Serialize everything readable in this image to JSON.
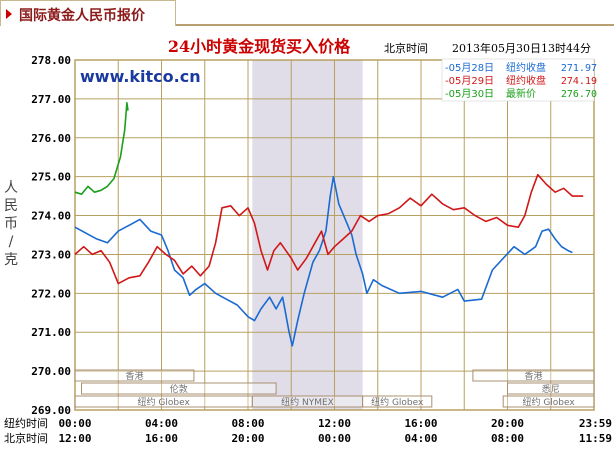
{
  "tab": {
    "title": "国际黄金人民币报价",
    "icon": "triangle-right-icon",
    "accent": "#cc0000"
  },
  "chart_data": {
    "type": "line",
    "title": "24小时黄金现货买入价格",
    "watermark": "www.kitco.cn",
    "time_label": "北京时间",
    "timestamp": "2013年05月30日13时44分",
    "ylabel": "人民币/克",
    "ylim": [
      269,
      278
    ],
    "y_ticks": [
      "278.00",
      "277.00",
      "276.00",
      "275.00",
      "274.00",
      "273.00",
      "272.00",
      "271.00",
      "270.00",
      "269.00"
    ],
    "x_rows": [
      {
        "label": "纽约时间",
        "ticks": [
          "00:00",
          "04:00",
          "08:00",
          "12:00",
          "16:00",
          "20:00",
          "23:59"
        ]
      },
      {
        "label": "北京时间",
        "ticks": [
          "12:00",
          "16:00",
          "20:00",
          "00:00",
          "04:00",
          "08:00",
          "11:59"
        ]
      }
    ],
    "grid": true,
    "colors": {
      "frame": "#b8a060",
      "grid": "#b8a060",
      "shade": "#e0dde8",
      "text": "#000000",
      "title": "#cc0000",
      "watermark": "#1a3aa0"
    },
    "shaded_region_ny_hours": [
      8.2,
      13.3
    ],
    "legend": [
      {
        "date": "05月28日",
        "desc": "纽约收盘",
        "value": "271.97",
        "color": "#1a6ad2"
      },
      {
        "date": "05月29日",
        "desc": "纽约收盘",
        "value": "274.19",
        "color": "#d01818"
      },
      {
        "date": "05月30日",
        "desc": "最新价",
        "value": "276.70",
        "color": "#1aa01a"
      }
    ],
    "market_labels": [
      {
        "text": "香港",
        "row": 0,
        "start": 0,
        "end": 5.5
      },
      {
        "text": "香港",
        "row": 0,
        "start": 18.4,
        "end": 24
      },
      {
        "text": "伦敦",
        "row": 1,
        "start": 0.3,
        "end": 9.3
      },
      {
        "text": "悉尼",
        "row": 1,
        "start": 20.0,
        "end": 24
      },
      {
        "text": "纽约 Globex",
        "row": 2,
        "start": 0,
        "end": 8.2
      },
      {
        "text": "纽约 NYMEX",
        "row": 2,
        "start": 8.2,
        "end": 13.3
      },
      {
        "text": "纽约 Globex",
        "row": 2,
        "start": 13.3,
        "end": 16.5
      },
      {
        "text": "纽约 Globex",
        "row": 2,
        "start": 19.8,
        "end": 24
      }
    ],
    "series": [
      {
        "name": "05月28日",
        "color": "#1a6ad2",
        "points": [
          [
            0,
            273.7
          ],
          [
            0.5,
            273.55
          ],
          [
            1,
            273.4
          ],
          [
            1.5,
            273.3
          ],
          [
            2,
            273.6
          ],
          [
            2.5,
            273.75
          ],
          [
            3,
            273.9
          ],
          [
            3.5,
            273.6
          ],
          [
            4,
            273.5
          ],
          [
            4.3,
            273.1
          ],
          [
            4.6,
            272.6
          ],
          [
            5,
            272.4
          ],
          [
            5.3,
            271.95
          ],
          [
            5.6,
            272.1
          ],
          [
            6,
            272.25
          ],
          [
            6.5,
            272.0
          ],
          [
            7,
            271.85
          ],
          [
            7.5,
            271.7
          ],
          [
            8,
            271.4
          ],
          [
            8.3,
            271.3
          ],
          [
            8.6,
            271.6
          ],
          [
            9,
            271.9
          ],
          [
            9.3,
            271.6
          ],
          [
            9.6,
            271.9
          ],
          [
            9.9,
            271.0
          ],
          [
            10.05,
            270.65
          ],
          [
            10.3,
            271.3
          ],
          [
            10.6,
            272.0
          ],
          [
            11,
            272.8
          ],
          [
            11.3,
            273.1
          ],
          [
            11.6,
            273.6
          ],
          [
            11.8,
            274.5
          ],
          [
            11.95,
            275.0
          ],
          [
            12.2,
            274.3
          ],
          [
            12.5,
            273.9
          ],
          [
            12.8,
            273.5
          ],
          [
            13.0,
            273.0
          ],
          [
            13.3,
            272.5
          ],
          [
            13.5,
            272.0
          ],
          [
            13.8,
            272.35
          ],
          [
            14.2,
            272.2
          ],
          [
            15,
            272.0
          ],
          [
            16,
            272.05
          ],
          [
            17,
            271.9
          ],
          [
            17.7,
            272.1
          ],
          [
            18,
            271.8
          ],
          [
            18.8,
            271.85
          ],
          [
            19.3,
            272.6
          ],
          [
            19.8,
            272.9
          ],
          [
            20.3,
            273.2
          ],
          [
            20.8,
            273.0
          ],
          [
            21.3,
            273.2
          ],
          [
            21.6,
            273.6
          ],
          [
            21.9,
            273.65
          ],
          [
            22.2,
            273.4
          ],
          [
            22.5,
            273.2
          ],
          [
            22.8,
            273.1
          ],
          [
            23.0,
            273.05
          ]
        ]
      },
      {
        "name": "05月29日",
        "color": "#d01818",
        "points": [
          [
            0,
            273.0
          ],
          [
            0.4,
            273.2
          ],
          [
            0.8,
            273.0
          ],
          [
            1.2,
            273.1
          ],
          [
            1.6,
            272.8
          ],
          [
            2,
            272.25
          ],
          [
            2.5,
            272.4
          ],
          [
            3,
            272.45
          ],
          [
            3.4,
            272.8
          ],
          [
            3.8,
            273.2
          ],
          [
            4.2,
            273.0
          ],
          [
            4.6,
            272.85
          ],
          [
            5,
            272.5
          ],
          [
            5.4,
            272.7
          ],
          [
            5.8,
            272.45
          ],
          [
            6.2,
            272.7
          ],
          [
            6.5,
            273.3
          ],
          [
            6.8,
            274.2
          ],
          [
            7.2,
            274.25
          ],
          [
            7.6,
            274.0
          ],
          [
            8.0,
            274.2
          ],
          [
            8.3,
            273.8
          ],
          [
            8.6,
            273.1
          ],
          [
            8.9,
            272.6
          ],
          [
            9.2,
            273.1
          ],
          [
            9.5,
            273.3
          ],
          [
            10.0,
            272.9
          ],
          [
            10.3,
            272.6
          ],
          [
            10.7,
            272.9
          ],
          [
            11.1,
            273.3
          ],
          [
            11.4,
            273.6
          ],
          [
            11.7,
            273.0
          ],
          [
            12.0,
            273.2
          ],
          [
            12.4,
            273.4
          ],
          [
            12.8,
            273.6
          ],
          [
            13.2,
            274.0
          ],
          [
            13.6,
            273.85
          ],
          [
            14,
            274.0
          ],
          [
            14.5,
            274.05
          ],
          [
            15,
            274.2
          ],
          [
            15.5,
            274.45
          ],
          [
            16,
            274.25
          ],
          [
            16.5,
            274.55
          ],
          [
            17,
            274.3
          ],
          [
            17.5,
            274.15
          ],
          [
            18,
            274.2
          ],
          [
            18.5,
            274.0
          ],
          [
            19,
            273.85
          ],
          [
            19.5,
            273.95
          ],
          [
            20,
            273.75
          ],
          [
            20.5,
            273.7
          ],
          [
            20.8,
            274.0
          ],
          [
            21.1,
            274.6
          ],
          [
            21.4,
            275.05
          ],
          [
            21.8,
            274.8
          ],
          [
            22.2,
            274.6
          ],
          [
            22.6,
            274.7
          ],
          [
            23.0,
            274.5
          ],
          [
            23.5,
            274.5
          ]
        ]
      },
      {
        "name": "05月30日",
        "color": "#1aa01a",
        "points": [
          [
            0,
            274.6
          ],
          [
            0.3,
            274.55
          ],
          [
            0.6,
            274.75
          ],
          [
            0.9,
            274.6
          ],
          [
            1.2,
            274.65
          ],
          [
            1.5,
            274.75
          ],
          [
            1.8,
            274.95
          ],
          [
            2.1,
            275.5
          ],
          [
            2.3,
            276.2
          ],
          [
            2.4,
            276.9
          ],
          [
            2.45,
            276.7
          ]
        ]
      }
    ]
  }
}
